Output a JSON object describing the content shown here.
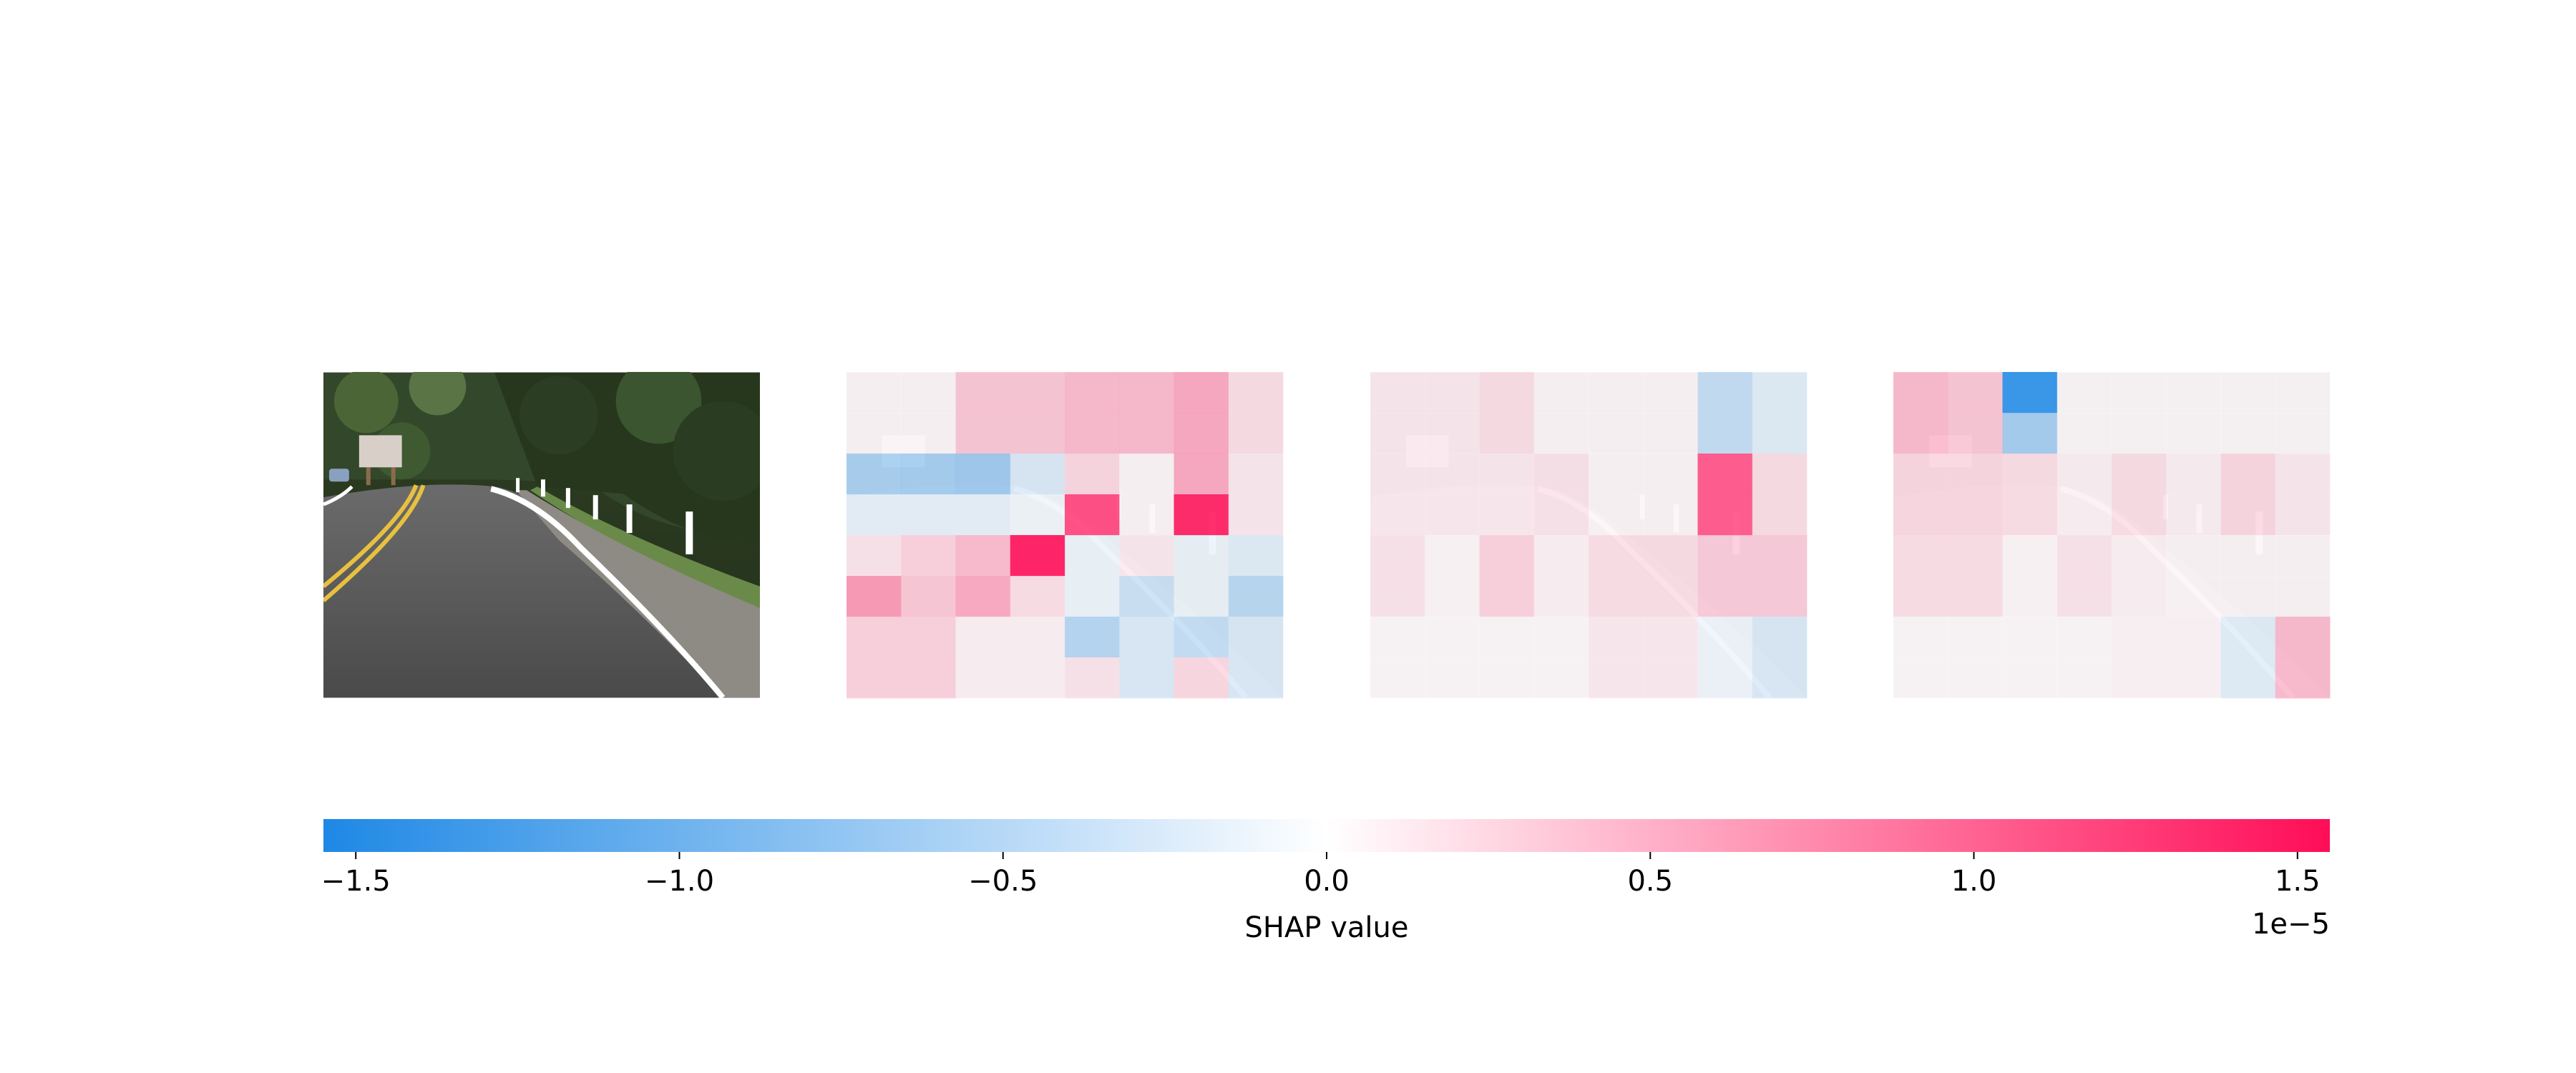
{
  "chart_data": {
    "type": "heatmap",
    "title": "",
    "colors": {
      "negative": "#1e88e5",
      "neutral": "#ffffff",
      "positive": "#ff0d57"
    },
    "colorbar": {
      "label": "SHAP value",
      "scale_text": "1e−5",
      "min": -1.55,
      "max": 1.55,
      "ticks": [
        {
          "value": -1.5,
          "label": "−1.5"
        },
        {
          "value": -1.0,
          "label": "−1.0"
        },
        {
          "value": -0.5,
          "label": "−0.5"
        },
        {
          "value": 0.0,
          "label": "0.0"
        },
        {
          "value": 0.5,
          "label": "0.5"
        },
        {
          "value": 1.0,
          "label": "1.0"
        },
        {
          "value": 1.5,
          "label": "1.5"
        }
      ]
    },
    "panels": [
      {
        "kind": "image",
        "description_icon": "road-photo"
      },
      {
        "kind": "shap",
        "grid_rows": 8,
        "grid_cols": 8,
        "values": [
          [
            0.05,
            0.05,
            0.45,
            0.45,
            0.55,
            0.55,
            0.7,
            0.25
          ],
          [
            0.05,
            0.05,
            0.45,
            0.45,
            0.55,
            0.55,
            0.7,
            0.25
          ],
          [
            -0.75,
            -0.8,
            -0.85,
            -0.3,
            0.3,
            0.05,
            0.7,
            0.15
          ],
          [
            -0.2,
            -0.2,
            -0.2,
            -0.1,
            1.2,
            0.05,
            1.45,
            0.15
          ],
          [
            0.2,
            0.35,
            0.55,
            1.5,
            -0.15,
            0.15,
            -0.15,
            -0.25
          ],
          [
            0.85,
            0.45,
            0.7,
            0.25,
            -0.15,
            -0.45,
            -0.15,
            -0.6
          ],
          [
            0.35,
            0.35,
            0.1,
            0.1,
            -0.65,
            -0.3,
            -0.5,
            -0.3
          ],
          [
            0.35,
            0.35,
            0.1,
            0.1,
            0.2,
            -0.3,
            0.3,
            -0.3
          ]
        ]
      },
      {
        "kind": "shap",
        "grid_rows": 8,
        "grid_cols": 8,
        "values": [
          [
            0.15,
            0.15,
            0.25,
            0.05,
            0.05,
            0.05,
            -0.5,
            -0.25
          ],
          [
            0.15,
            0.15,
            0.25,
            0.05,
            0.05,
            0.05,
            -0.5,
            -0.25
          ],
          [
            0.15,
            0.15,
            0.15,
            0.2,
            0.05,
            0.05,
            1.1,
            0.25
          ],
          [
            0.15,
            0.15,
            0.15,
            0.2,
            0.05,
            0.05,
            1.1,
            0.25
          ],
          [
            0.2,
            0.05,
            0.35,
            0.1,
            0.25,
            0.25,
            0.4,
            0.4
          ],
          [
            0.2,
            0.05,
            0.35,
            0.1,
            0.25,
            0.25,
            0.4,
            0.4
          ],
          [
            0.03,
            0.03,
            0.03,
            0.03,
            0.15,
            0.15,
            -0.12,
            -0.3
          ],
          [
            0.03,
            0.03,
            0.03,
            0.03,
            0.15,
            0.15,
            -0.12,
            -0.3
          ]
        ]
      },
      {
        "kind": "shap",
        "grid_rows": 8,
        "grid_cols": 8,
        "values": [
          [
            0.55,
            0.45,
            -1.45,
            0.03,
            0.03,
            0.03,
            0.03,
            0.03
          ],
          [
            0.55,
            0.45,
            -0.8,
            0.03,
            0.03,
            0.03,
            0.03,
            0.03
          ],
          [
            0.3,
            0.3,
            0.25,
            0.1,
            0.25,
            0.1,
            0.3,
            0.15
          ],
          [
            0.3,
            0.3,
            0.25,
            0.1,
            0.25,
            0.1,
            0.3,
            0.15
          ],
          [
            0.25,
            0.25,
            0.05,
            0.2,
            0.1,
            0.05,
            0.05,
            0.05
          ],
          [
            0.25,
            0.25,
            0.05,
            0.2,
            0.1,
            0.05,
            0.05,
            0.05
          ],
          [
            0.03,
            0.03,
            0.03,
            0.03,
            0.08,
            0.08,
            -0.25,
            0.55
          ],
          [
            0.03,
            0.03,
            0.03,
            0.03,
            0.08,
            0.08,
            -0.25,
            0.55
          ]
        ]
      }
    ]
  }
}
